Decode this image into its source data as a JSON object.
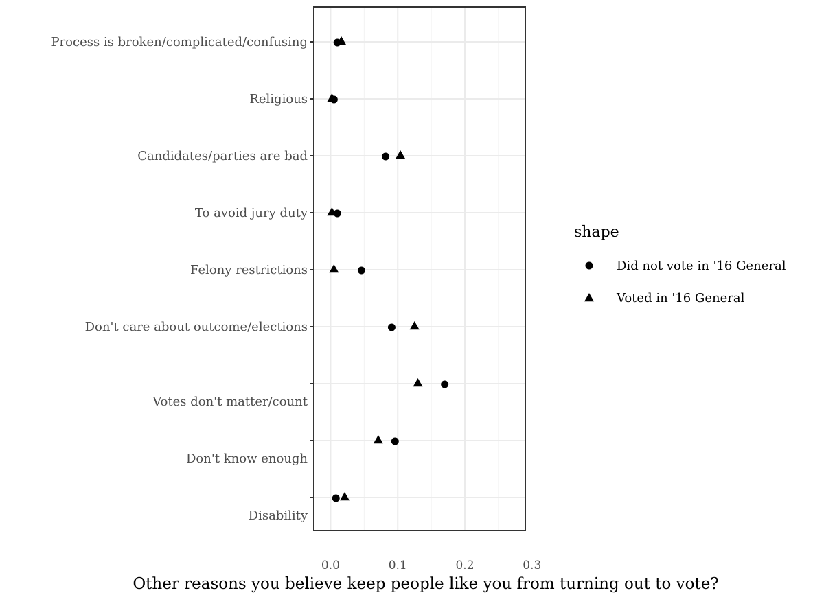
{
  "chart_data": {
    "type": "scatter",
    "title": "",
    "xlabel": "Other reasons you believe keep people like you from turning out to vote?",
    "ylabel": "",
    "xlim": [
      -0.025,
      0.29
    ],
    "x_ticks": [
      0.0,
      0.1,
      0.2,
      0.3
    ],
    "x_tick_labels": [
      "0.0",
      "0.1",
      "0.2",
      "0.3"
    ],
    "grid": true,
    "legend_position": "right",
    "legend_title": "shape",
    "categories": [
      "Process is broken/complicated/confusing",
      "Religious",
      "Candidates/parties are bad",
      "To avoid jury duty",
      "Felony restrictions",
      "Don't care about outcome/elections",
      "Votes don't matter/count",
      "Don't know enough",
      "Disability"
    ],
    "series": [
      {
        "name": "Did not vote in '16 General",
        "marker": "circle",
        "values": [
          0.01,
          0.005,
          0.082,
          0.01,
          0.046,
          0.091,
          0.17,
          0.096,
          0.008
        ]
      },
      {
        "name": "Voted in '16 General",
        "marker": "triangle",
        "values": [
          0.016,
          0.002,
          0.104,
          0.002,
          0.005,
          0.125,
          0.13,
          0.071,
          0.021
        ]
      }
    ]
  }
}
